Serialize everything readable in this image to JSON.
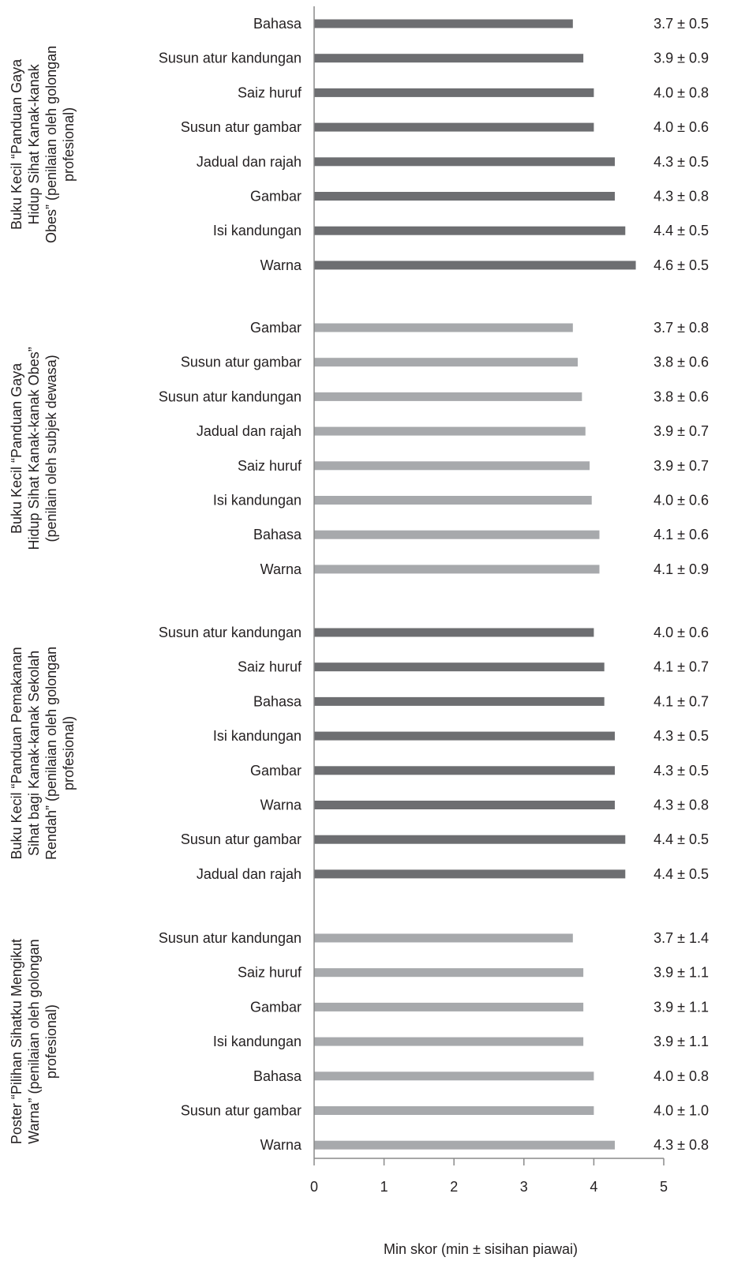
{
  "chart_data": {
    "type": "bar",
    "orientation": "horizontal",
    "xlabel": "Min skor (min ± sisihan piawai)",
    "xlim": [
      0,
      5
    ],
    "xticks": [
      "0",
      "1",
      "2",
      "3",
      "4",
      "5"
    ],
    "grid": false,
    "legend": "none",
    "groups": [
      {
        "label_lines": [
          "Buku Kecil “Panduan Gaya",
          "Hidup Sihat Kanak-kanak",
          "Obes” (penilaian oleh golongan",
          "profesional)"
        ],
        "color": "#6d6e71",
        "bars": [
          {
            "category": "Bahasa",
            "value": 3.7,
            "label": "3.7 ± 0.5"
          },
          {
            "category": "Susun atur kandungan",
            "value": 3.85,
            "label": "3.9 ± 0.9"
          },
          {
            "category": "Saiz huruf",
            "value": 4.0,
            "label": "4.0 ± 0.8"
          },
          {
            "category": "Susun atur gambar",
            "value": 4.0,
            "label": "4.0 ± 0.6"
          },
          {
            "category": "Jadual dan rajah",
            "value": 4.3,
            "label": "4.3 ± 0.5"
          },
          {
            "category": "Gambar",
            "value": 4.3,
            "label": "4.3 ± 0.8"
          },
          {
            "category": "Isi kandungan",
            "value": 4.45,
            "label": "4.4 ± 0.5"
          },
          {
            "category": "Warna",
            "value": 4.6,
            "label": "4.6 ± 0.5"
          }
        ]
      },
      {
        "label_lines": [
          "Buku Kecil “Panduan Gaya",
          "Hidup  Sihat Kanak-kanak Obes”",
          "(penilain oleh subjek dewasa)"
        ],
        "color": "#a7a9ac",
        "bars": [
          {
            "category": "Gambar",
            "value": 3.7,
            "label": "3.7 ± 0.8"
          },
          {
            "category": "Susun atur gambar",
            "value": 3.77,
            "label": "3.8 ± 0.6"
          },
          {
            "category": "Susun atur kandungan",
            "value": 3.83,
            "label": "3.8 ± 0.6"
          },
          {
            "category": "Jadual dan rajah",
            "value": 3.88,
            "label": "3.9 ± 0.7"
          },
          {
            "category": "Saiz huruf",
            "value": 3.94,
            "label": "3.9 ± 0.7"
          },
          {
            "category": "Isi kandungan",
            "value": 3.97,
            "label": "4.0 ± 0.6"
          },
          {
            "category": "Bahasa",
            "value": 4.08,
            "label": "4.1 ± 0.6"
          },
          {
            "category": "Warna",
            "value": 4.08,
            "label": "4.1 ± 0.9"
          }
        ]
      },
      {
        "label_lines": [
          "Buku Kecil “Panduan Pemakanan",
          "Sihat bagi Kanak-kanak Sekolah",
          "Rendah” (penilaian oleh golongan",
          "profesional)"
        ],
        "color": "#6d6e71",
        "bars": [
          {
            "category": "Susun atur kandungan",
            "value": 4.0,
            "label": "4.0 ± 0.6"
          },
          {
            "category": "Saiz huruf",
            "value": 4.15,
            "label": "4.1 ± 0.7"
          },
          {
            "category": "Bahasa",
            "value": 4.15,
            "label": "4.1 ± 0.7"
          },
          {
            "category": "Isi kandungan",
            "value": 4.3,
            "label": "4.3 ± 0.5"
          },
          {
            "category": "Gambar",
            "value": 4.3,
            "label": "4.3 ± 0.5"
          },
          {
            "category": "Warna",
            "value": 4.3,
            "label": "4.3 ± 0.8"
          },
          {
            "category": "Susun atur gambar",
            "value": 4.45,
            "label": "4.4 ± 0.5"
          },
          {
            "category": "Jadual dan rajah",
            "value": 4.45,
            "label": "4.4 ± 0.5"
          }
        ]
      },
      {
        "label_lines": [
          "Poster “Pilihan Sihatku Mengikut",
          "Warna” (penilaian oleh golongan",
          "profesional)"
        ],
        "color": "#a7a9ac",
        "bars": [
          {
            "category": "Susun atur kandungan",
            "value": 3.7,
            "label": "3.7 ± 1.4"
          },
          {
            "category": "Saiz huruf",
            "value": 3.85,
            "label": "3.9 ± 1.1"
          },
          {
            "category": "Gambar",
            "value": 3.85,
            "label": "3.9 ± 1.1"
          },
          {
            "category": "Isi kandungan",
            "value": 3.85,
            "label": "3.9 ± 1.1"
          },
          {
            "category": "Bahasa",
            "value": 4.0,
            "label": "4.0 ± 0.8"
          },
          {
            "category": "Susun atur gambar",
            "value": 4.0,
            "label": "4.0 ± 1.0"
          },
          {
            "category": "Warna",
            "value": 4.3,
            "label": "4.3 ± 0.8"
          }
        ]
      }
    ]
  }
}
